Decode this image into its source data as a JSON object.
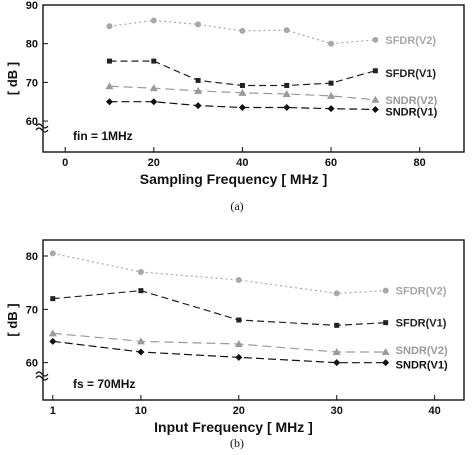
{
  "colors": {
    "sfdr_v2": "#a8a8a8",
    "sndr_v2": "#9a9a9a",
    "sfdr_v1": "#222222",
    "sndr_v1": "#111111"
  },
  "chart_data": [
    {
      "type": "line",
      "caption": "(a)",
      "xlabel": "Sampling Frequency [ MHz ]",
      "ylabel": "[ dB ]",
      "annotation": "fin = 1MHz",
      "xlim": [
        -5,
        90
      ],
      "ylim": [
        52,
        90
      ],
      "xticks": [
        0,
        20,
        40,
        60,
        80
      ],
      "yticks": [
        60,
        70,
        80,
        90
      ],
      "x": [
        10,
        20,
        30,
        40,
        50,
        60,
        70
      ],
      "series": [
        {
          "name": "SFDR(V2)",
          "values": [
            84.5,
            86,
            85,
            83.3,
            83.5,
            80,
            81
          ],
          "marker": "circle",
          "color_key": "sfdr_v2"
        },
        {
          "name": "SFDR(V1)",
          "values": [
            75.5,
            75.5,
            70.5,
            69.2,
            69.2,
            69.8,
            73
          ],
          "marker": "square",
          "color_key": "sfdr_v1"
        },
        {
          "name": "SNDR(V2)",
          "values": [
            69,
            68.5,
            67.8,
            67.3,
            67,
            66.5,
            65.5
          ],
          "marker": "triangle",
          "color_key": "sndr_v2"
        },
        {
          "name": "SNDR(V1)",
          "values": [
            65,
            65,
            64,
            63.5,
            63.5,
            63.2,
            63
          ],
          "marker": "diamond",
          "color_key": "sndr_v1"
        }
      ]
    },
    {
      "type": "line",
      "caption": "(b)",
      "xlabel": "Input Frequency [ MHz ]",
      "ylabel": "[ dB ]",
      "annotation": "fs = 70MHz",
      "xlim": [
        0,
        43
      ],
      "ylim": [
        53,
        83
      ],
      "xticks": [
        1,
        10,
        20,
        30,
        40
      ],
      "yticks": [
        60,
        70,
        80
      ],
      "x": [
        1,
        10,
        20,
        30,
        35
      ],
      "series": [
        {
          "name": "SFDR(V2)",
          "values": [
            80.5,
            77,
            75.5,
            73,
            73.5
          ],
          "marker": "circle",
          "color_key": "sfdr_v2"
        },
        {
          "name": "SFDR(V1)",
          "values": [
            72,
            73.5,
            68,
            67,
            67.5
          ],
          "marker": "square",
          "color_key": "sfdr_v1"
        },
        {
          "name": "SNDR(V2)",
          "values": [
            65.5,
            64,
            63.5,
            62,
            62
          ],
          "marker": "triangle",
          "color_key": "sndr_v2"
        },
        {
          "name": "SNDR(V1)",
          "values": [
            64,
            62,
            61,
            60,
            60
          ],
          "marker": "diamond",
          "color_key": "sndr_v1"
        }
      ]
    }
  ]
}
